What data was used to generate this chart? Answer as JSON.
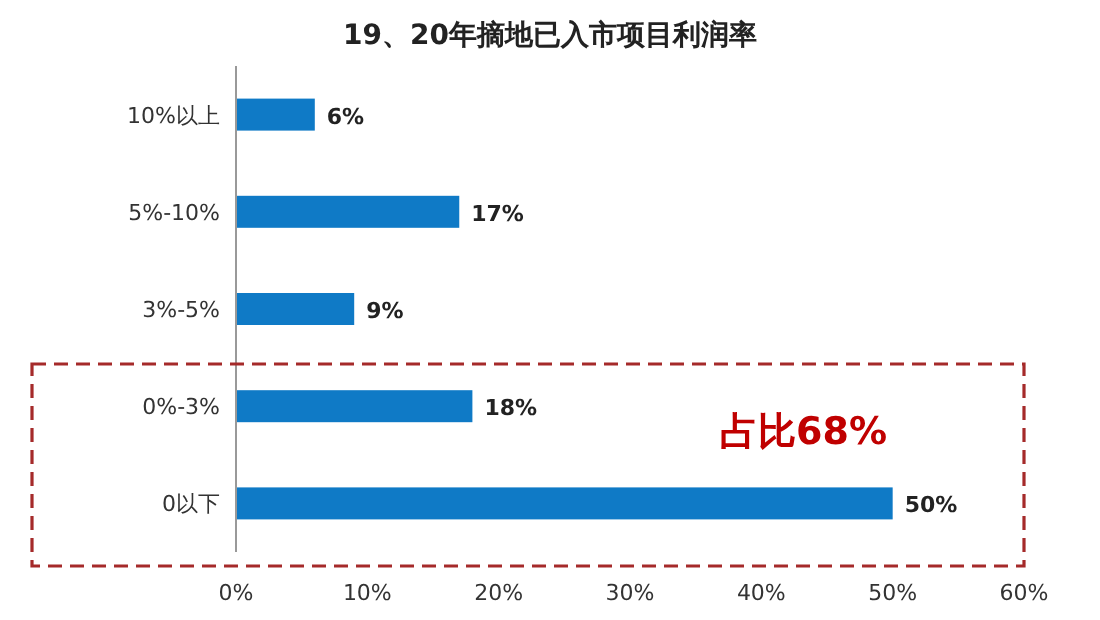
{
  "chart_data": {
    "type": "bar",
    "orientation": "horizontal",
    "title": "19、20年摘地已入市项目利润率",
    "categories": [
      "10%以上",
      "5%-10%",
      "3%-5%",
      "0%-3%",
      "0以下"
    ],
    "values": [
      6,
      17,
      9,
      18,
      50
    ],
    "value_labels": [
      "6%",
      "17%",
      "9%",
      "18%",
      "50%"
    ],
    "color": "#0f7ac6",
    "xlim": [
      0,
      60
    ],
    "xticks": [
      {
        "value": 0,
        "label": "0%"
      },
      {
        "value": 10,
        "label": "10%"
      },
      {
        "value": 20,
        "label": "20%"
      },
      {
        "value": 30,
        "label": "30%"
      },
      {
        "value": 40,
        "label": "40%"
      },
      {
        "value": 50,
        "label": "50%"
      },
      {
        "value": 60,
        "label": "60%"
      }
    ],
    "annotations": [
      "占比68%"
    ]
  }
}
